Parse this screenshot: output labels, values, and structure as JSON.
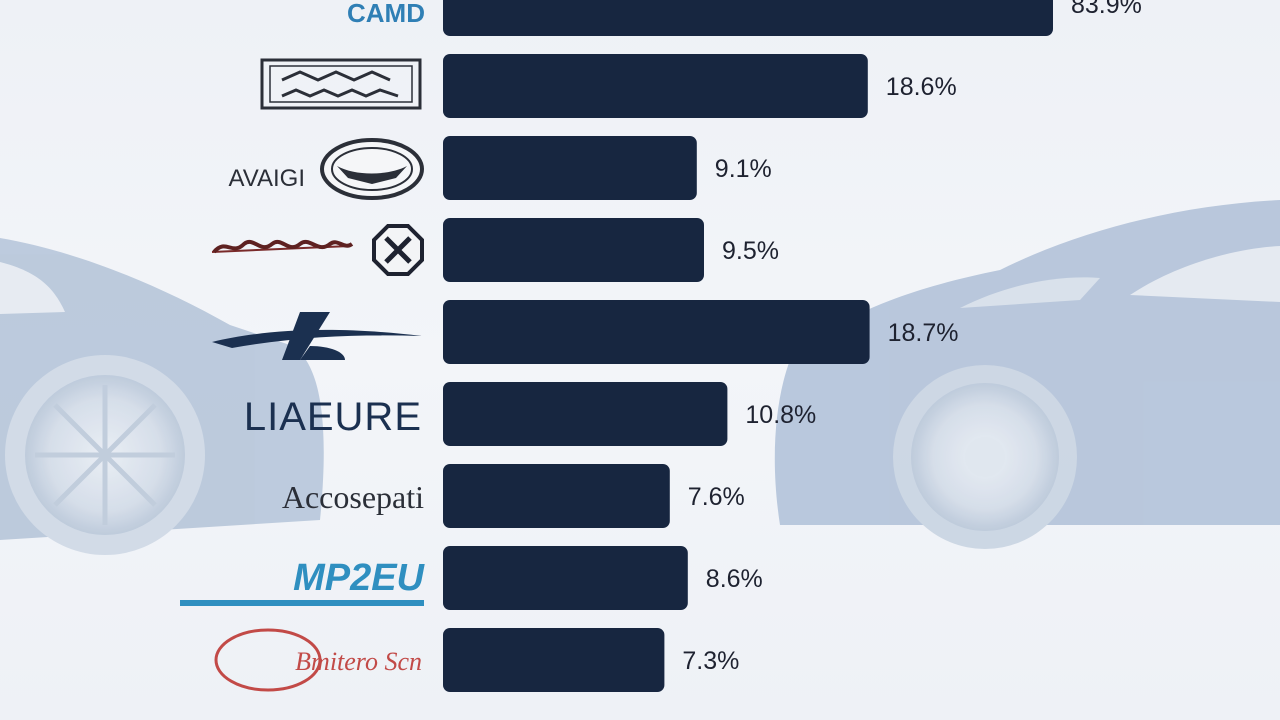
{
  "chart_data": {
    "type": "bar",
    "orientation": "horizontal",
    "categories": [
      "CAMD",
      "",
      "AVAIGI",
      "",
      "",
      "LIAEURE",
      "Accosepati",
      "MP2EU",
      "Bmitero Scn"
    ],
    "values": [
      83.9,
      18.6,
      9.1,
      9.5,
      18.7,
      10.8,
      7.6,
      8.6,
      7.3
    ],
    "value_labels": [
      "83.9%",
      "18.6%",
      "9.1%",
      "9.5%",
      "18.7%",
      "10.8%",
      "7.6%",
      "8.6%",
      "7.3%"
    ],
    "title": "",
    "xlabel": "",
    "ylabel": "",
    "grid": false,
    "legend": "none"
  },
  "colors": {
    "bar": "#172640",
    "label": "#1e2230",
    "car_silhouette": "#a9b9d0",
    "logo_blue": "#2f7fb5",
    "logo_navy": "#1b3050",
    "logo_red": "#c24a47"
  },
  "logos": [
    {
      "icon": "camd-wordmark"
    },
    {
      "icon": "badge-crest-logo"
    },
    {
      "icon": "oval-emblem-logo"
    },
    {
      "icon": "script-wordmark-with-octagon-badge"
    },
    {
      "icon": "swoosh-logo"
    },
    {
      "icon": "liaeure-wordmark"
    },
    {
      "icon": "serif-wordmark"
    },
    {
      "icon": "italic-blue-wordmark"
    },
    {
      "icon": "red-swirl-script-logo"
    }
  ]
}
